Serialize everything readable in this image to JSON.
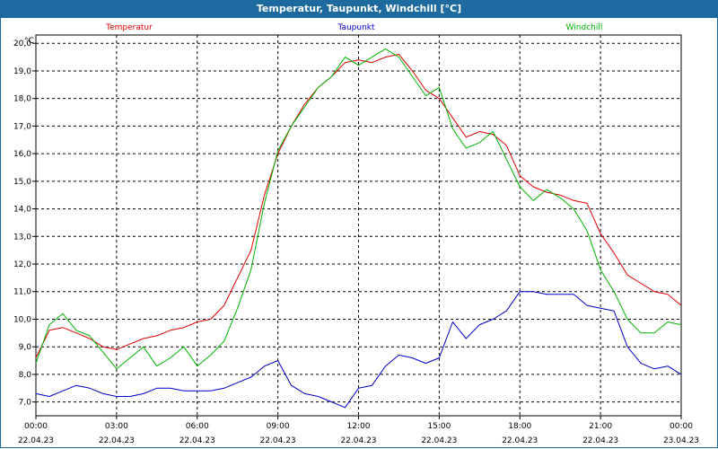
{
  "window": {
    "title": "Temperatur, Taupunkt, Windchill [°C]"
  },
  "chart_data": {
    "type": "line",
    "unit": "°C",
    "ylim": [
      6.5,
      20.3
    ],
    "y_ticks": [
      "7,0",
      "8,0",
      "9,0",
      "10,0",
      "11,0",
      "12,0",
      "13,0",
      "14,0",
      "15,0",
      "16,0",
      "17,0",
      "18,0",
      "19,0",
      "20,0"
    ],
    "x_range_hours": [
      0,
      24
    ],
    "x_ticks": [
      {
        "time": "00:00",
        "date": "22.04.23"
      },
      {
        "time": "03:00",
        "date": "22.04.23"
      },
      {
        "time": "06:00",
        "date": "22.04.23"
      },
      {
        "time": "09:00",
        "date": "22.04.23"
      },
      {
        "time": "12:00",
        "date": "22.04.23"
      },
      {
        "time": "15:00",
        "date": "22.04.23"
      },
      {
        "time": "18:00",
        "date": "22.04.23"
      },
      {
        "time": "21:00",
        "date": "22.04.23"
      },
      {
        "time": "00:00",
        "date": "23.04.23"
      }
    ],
    "grid": true,
    "series": [
      {
        "name": "Temperatur",
        "color": "#e00000",
        "x": [
          0,
          0.5,
          1,
          1.5,
          2,
          2.5,
          3,
          3.5,
          4,
          4.5,
          5,
          5.5,
          6,
          6.5,
          7,
          7.5,
          8,
          8.5,
          9,
          9.5,
          10,
          10.5,
          11,
          11.5,
          12,
          12.5,
          13,
          13.5,
          14,
          14.5,
          15,
          15.5,
          16,
          16.5,
          17,
          17.5,
          18,
          18.5,
          19,
          19.5,
          20,
          20.5,
          21,
          21.5,
          22,
          22.5,
          23,
          23.5,
          24
        ],
        "y": [
          8.6,
          9.6,
          9.7,
          9.5,
          9.3,
          9.0,
          8.9,
          9.1,
          9.3,
          9.4,
          9.6,
          9.7,
          9.9,
          10.0,
          10.5,
          11.5,
          12.5,
          14.5,
          16.0,
          17.0,
          17.8,
          18.4,
          18.8,
          19.3,
          19.4,
          19.3,
          19.5,
          19.6,
          19.0,
          18.3,
          18.0,
          17.3,
          16.6,
          16.8,
          16.7,
          16.3,
          15.2,
          14.8,
          14.6,
          14.5,
          14.3,
          14.2,
          13.1,
          12.4,
          11.6,
          11.3,
          11.0,
          10.9,
          10.5
        ]
      },
      {
        "name": "Taupunkt",
        "color": "#0000c8",
        "x": [
          0,
          0.5,
          1,
          1.5,
          2,
          2.5,
          3,
          3.5,
          4,
          4.5,
          5,
          5.5,
          6,
          6.5,
          7,
          7.5,
          8,
          8.5,
          9,
          9.5,
          10,
          10.5,
          11,
          11.5,
          12,
          12.5,
          13,
          13.5,
          14,
          14.5,
          15,
          15.5,
          16,
          16.5,
          17,
          17.5,
          18,
          18.5,
          19,
          19.5,
          20,
          20.5,
          21,
          21.5,
          22,
          22.5,
          23,
          23.5,
          24
        ],
        "y": [
          7.3,
          7.2,
          7.4,
          7.6,
          7.5,
          7.3,
          7.2,
          7.2,
          7.3,
          7.5,
          7.5,
          7.4,
          7.4,
          7.4,
          7.5,
          7.7,
          7.9,
          8.3,
          8.5,
          7.6,
          7.3,
          7.2,
          7.0,
          6.8,
          7.5,
          7.6,
          8.3,
          8.7,
          8.6,
          8.4,
          8.6,
          9.9,
          9.3,
          9.8,
          10.0,
          10.3,
          11.0,
          11.0,
          10.9,
          10.9,
          10.9,
          10.5,
          10.4,
          10.3,
          9.0,
          8.4,
          8.2,
          8.3,
          8.0
        ]
      },
      {
        "name": "Windchill",
        "color": "#00b400",
        "x": [
          0,
          0.5,
          1,
          1.5,
          2,
          2.5,
          3,
          3.5,
          4,
          4.5,
          5,
          5.5,
          6,
          6.5,
          7,
          7.5,
          8,
          8.5,
          9,
          9.5,
          10,
          10.5,
          11,
          11.5,
          12,
          12.5,
          13,
          13.5,
          14,
          14.5,
          15,
          15.5,
          16,
          16.5,
          17,
          17.5,
          18,
          18.5,
          19,
          19.5,
          20,
          20.5,
          21,
          21.5,
          22,
          22.5,
          23,
          23.5,
          24
        ],
        "y": [
          8.4,
          9.8,
          10.2,
          9.6,
          9.4,
          8.8,
          8.2,
          8.6,
          9.0,
          8.3,
          8.6,
          9.0,
          8.3,
          8.7,
          9.2,
          10.4,
          11.8,
          14.2,
          16.1,
          17.0,
          17.7,
          18.4,
          18.8,
          19.5,
          19.2,
          19.5,
          19.8,
          19.5,
          18.8,
          18.1,
          18.4,
          16.9,
          16.2,
          16.4,
          16.8,
          15.8,
          14.8,
          14.3,
          14.7,
          14.4,
          14.0,
          13.2,
          11.8,
          11.0,
          10.0,
          9.5,
          9.5,
          9.9,
          9.8
        ]
      }
    ]
  }
}
